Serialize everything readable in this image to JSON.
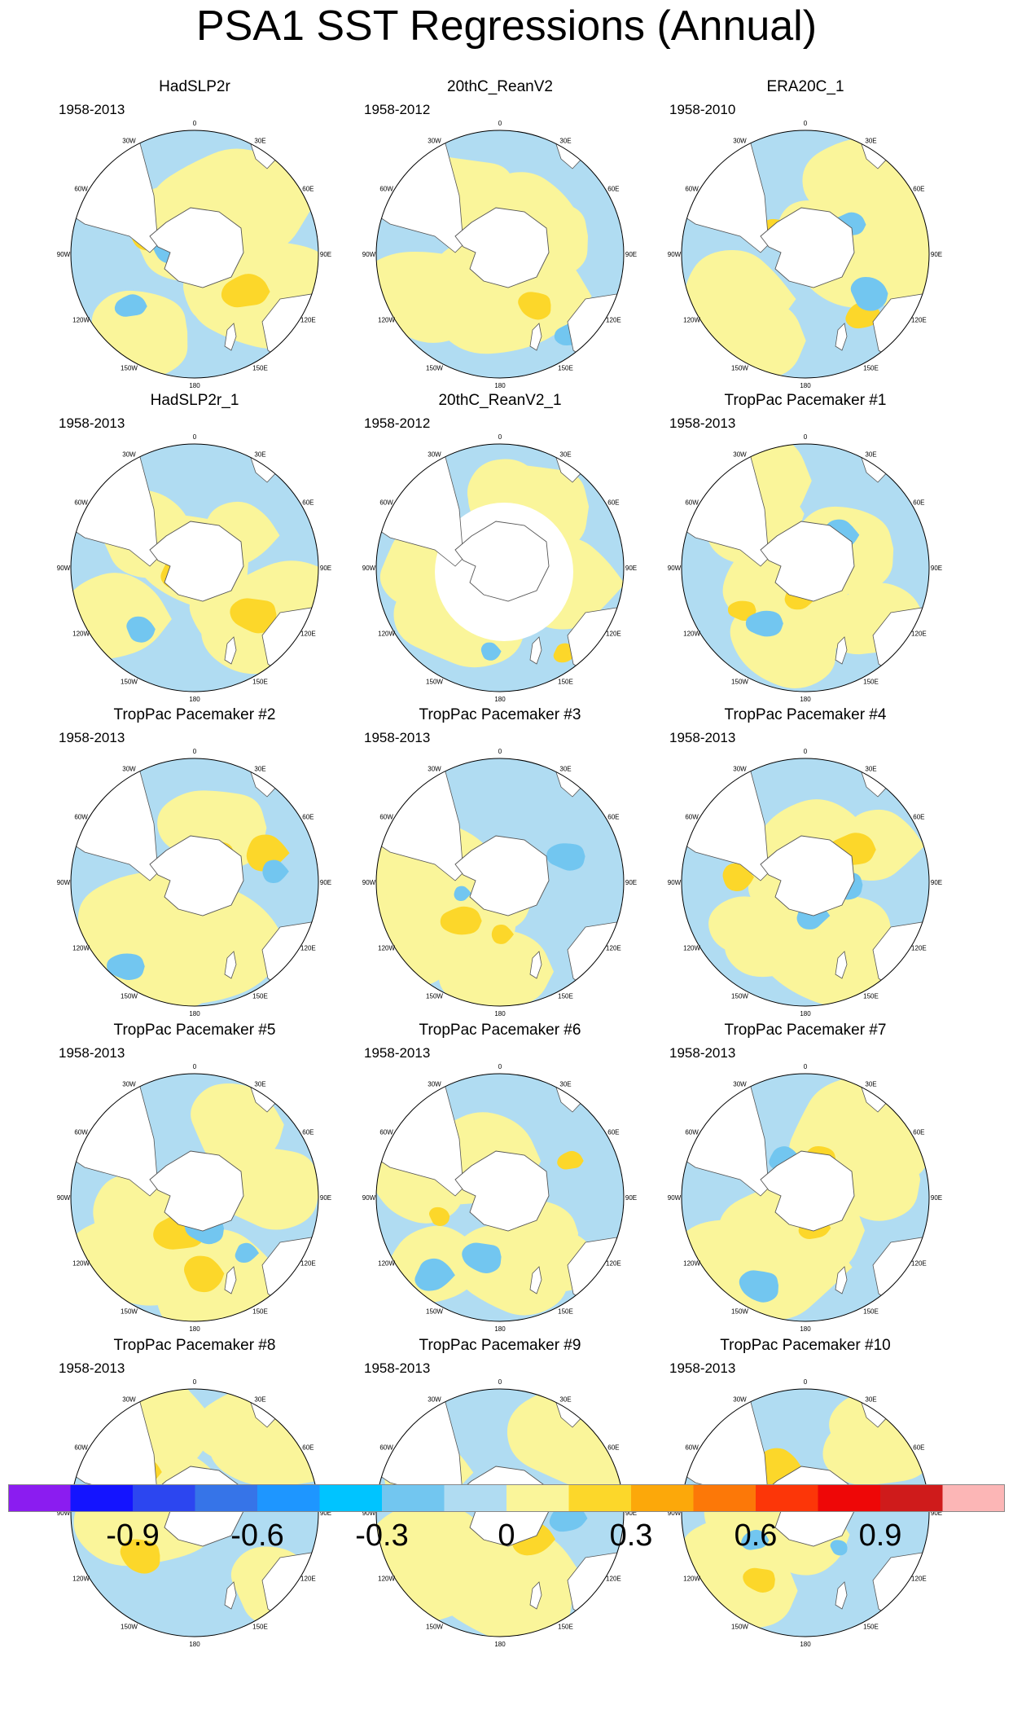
{
  "title": "PSA1 SST Regressions (Annual)",
  "colors": {
    "levels": [
      "#8b1cf0",
      "#1414ff",
      "#2c46f0",
      "#3674e8",
      "#1e96ff",
      "#00c4ff",
      "#72c6f0",
      "#b0dcf2",
      "#faf59a",
      "#fcd72a",
      "#fca80a",
      "#fc7808",
      "#fc3608",
      "#ee0707",
      "#cf1b1b",
      "#fcb6b6"
    ],
    "land": "#ffffff",
    "coast": "#555555"
  },
  "chart_data": {
    "type": "polar stereographic contour map panels",
    "units": "SST regression",
    "longitude_labels": [
      "0",
      "30E",
      "60E",
      "90E",
      "120E",
      "150E",
      "180",
      "150W",
      "120W",
      "90W",
      "60W",
      "30W"
    ],
    "panels": [
      {
        "title": "HadSLP2r",
        "period": "1958-2013"
      },
      {
        "title": "20thC_ReanV2",
        "period": "1958-2012"
      },
      {
        "title": "ERA20C_1",
        "period": "1958-2010"
      },
      {
        "title": "HadSLP2r_1",
        "period": "1958-2013"
      },
      {
        "title": "20thC_ReanV2_1",
        "period": "1958-2012"
      },
      {
        "title": "TropPac Pacemaker #1",
        "period": "1958-2013"
      },
      {
        "title": "TropPac Pacemaker #2",
        "period": "1958-2013"
      },
      {
        "title": "TropPac Pacemaker #3",
        "period": "1958-2013"
      },
      {
        "title": "TropPac Pacemaker #4",
        "period": "1958-2013"
      },
      {
        "title": "TropPac Pacemaker #5",
        "period": "1958-2013"
      },
      {
        "title": "TropPac Pacemaker #6",
        "period": "1958-2013"
      },
      {
        "title": "TropPac Pacemaker #7",
        "period": "1958-2013"
      },
      {
        "title": "TropPac Pacemaker #8",
        "period": "1958-2013"
      },
      {
        "title": "TropPac Pacemaker #9",
        "period": "1958-2013"
      },
      {
        "title": "TropPac Pacemaker #10",
        "period": "1958-2013"
      }
    ],
    "colorbar": {
      "levels": [
        -1.05,
        -0.9,
        -0.75,
        -0.6,
        -0.45,
        -0.3,
        -0.15,
        0,
        0.15,
        0.3,
        0.45,
        0.6,
        0.75,
        0.9,
        1.05
      ],
      "tick_labels": [
        "-0.9",
        "-0.6",
        "-0.3",
        "0",
        "0.3",
        "0.6",
        "0.9"
      ],
      "tick_values": [
        -0.9,
        -0.6,
        -0.3,
        0,
        0.3,
        0.6,
        0.9
      ]
    }
  }
}
